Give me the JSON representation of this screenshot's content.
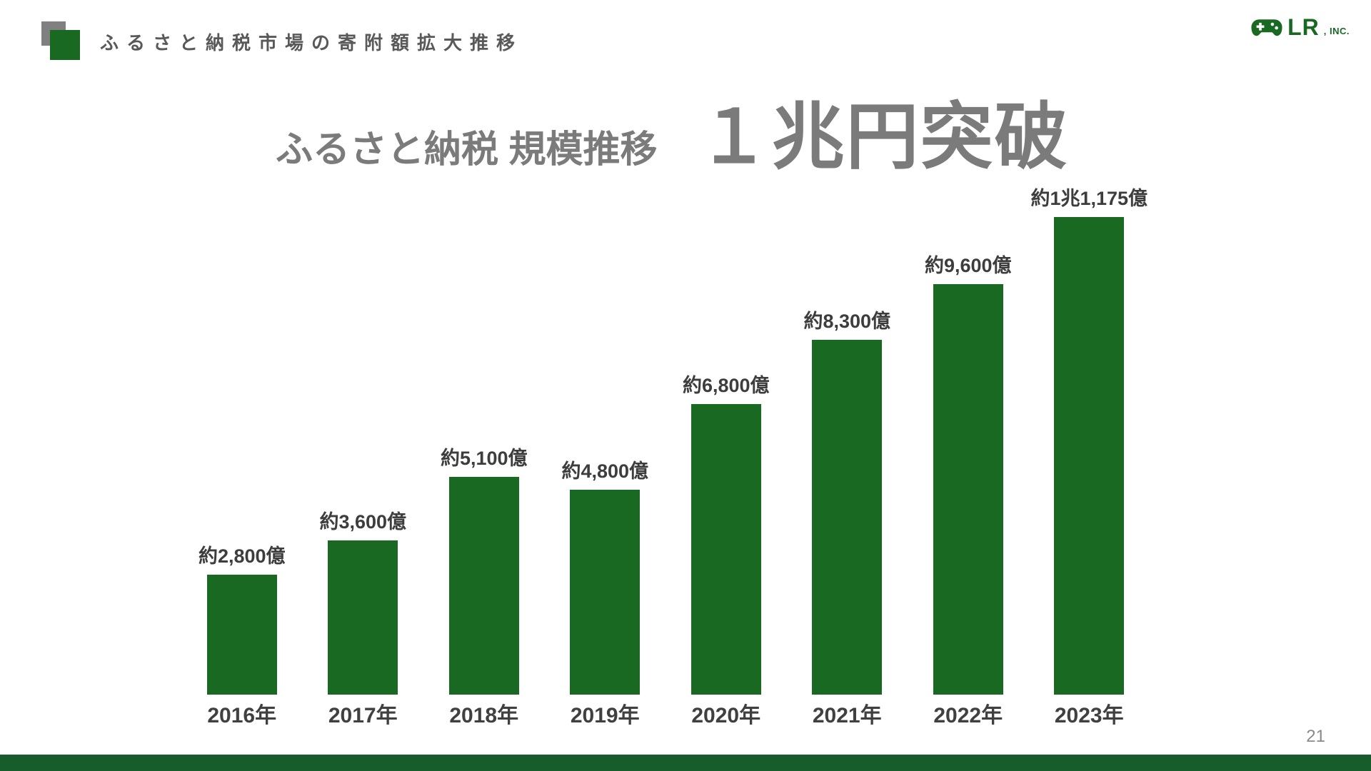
{
  "slide": {
    "header": {
      "title": "ふるさと納税市場の寄附額拡大推移"
    },
    "logo": {
      "company": "LR",
      "suffix": ", INC.",
      "icon": "gamepad-icon"
    },
    "title": {
      "main": "ふるさと納税 規模推移",
      "highlight": "１兆円突破"
    },
    "page_number": "21",
    "colors": {
      "bar_green": "#1a6923",
      "footer_green": "#175d2b",
      "title_gray": "#7b7b7b",
      "header_gray": "#595959",
      "label_gray": "#3d3d3d"
    }
  },
  "chart_data": {
    "type": "bar",
    "title": "ふるさと納税 規模推移 １兆円突破",
    "categories": [
      "2016年",
      "2017年",
      "2018年",
      "2019年",
      "2020年",
      "2021年",
      "2022年",
      "2023年"
    ],
    "values": [
      2800,
      3600,
      5100,
      4800,
      6800,
      8300,
      9600,
      11175
    ],
    "value_labels": [
      "約2,800億",
      "約3,600億",
      "約5,100億",
      "約4,800億",
      "約6,800億",
      "約8,300億",
      "約9,600億",
      "約1兆1,175億"
    ],
    "unit": "億円",
    "xlabel": "",
    "ylabel": "",
    "ylim": [
      0,
      11500
    ],
    "grid": false,
    "legend": "none",
    "bar_color": "#1a6923"
  }
}
